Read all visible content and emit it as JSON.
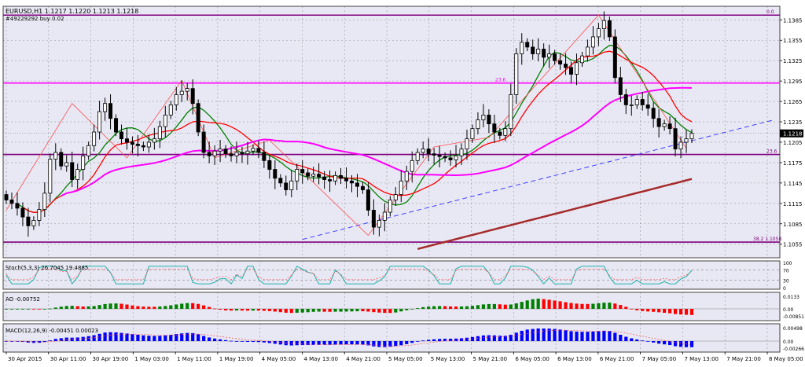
{
  "header": {
    "symbol_line": "EURUSD,H1  1.1217 1.1220 1.1213 1.1218",
    "order_line": "#49229292 buy 0.02"
  },
  "chart_data": {
    "type": "candlestick",
    "symbol": "EURUSD",
    "timeframe": "H1",
    "ohlc_last": {
      "open": 1.1217,
      "high": 1.122,
      "low": 1.1213,
      "close": 1.1218
    },
    "current_price_label": "1.1218",
    "y_ticks": [
      "1.1385",
      "1.1355",
      "1.1325",
      "1.1295",
      "1.1265",
      "1.1235",
      "1.1205",
      "1.1175",
      "1.1145",
      "1.1115",
      "1.1085",
      "1.1055"
    ],
    "x_labels": [
      "30 Apr 2015",
      "30 Apr 11:00",
      "30 Apr 19:00",
      "1 May 03:00",
      "1 May 11:00",
      "1 May 19:00",
      "4 May 05:00",
      "4 May 13:00",
      "4 May 21:00",
      "5 May 05:00",
      "5 May 13:00",
      "5 May 21:00",
      "6 May 05:00",
      "6 May 13:00",
      "6 May 21:00",
      "7 May 05:00",
      "7 May 13:00",
      "7 May 21:00",
      "8 May 05:00"
    ],
    "fib_levels": [
      {
        "label": "0.0",
        "price": 1.1392
      },
      {
        "label": "23.6",
        "price": 1.1292
      },
      {
        "label": "23.6",
        "price": 1.1187
      },
      {
        "label": "38.2 1.1058",
        "price": 1.1058
      }
    ],
    "candles_close": [
      1.112,
      1.1115,
      1.1108,
      1.1095,
      1.1082,
      1.109,
      1.1106,
      1.113,
      1.118,
      1.119,
      1.117,
      1.1175,
      1.115,
      1.1165,
      1.1185,
      1.12,
      1.122,
      1.125,
      1.1262,
      1.124,
      1.122,
      1.121,
      1.1205,
      1.1202,
      1.12,
      1.1198,
      1.1205,
      1.121,
      1.1228,
      1.1245,
      1.126,
      1.1275,
      1.128,
      1.1284,
      1.1262,
      1.122,
      1.119,
      1.1185,
      1.1192,
      1.1195,
      1.1188,
      1.1185,
      1.119,
      1.1188,
      1.1192,
      1.1196,
      1.119,
      1.1178,
      1.1165,
      1.1152,
      1.1145,
      1.1135,
      1.1148,
      1.1165,
      1.116,
      1.1155,
      1.1158,
      1.1154,
      1.115,
      1.1148,
      1.1156,
      1.1152,
      1.1148,
      1.1145,
      1.114,
      1.1135,
      1.1105,
      1.108,
      1.109,
      1.1102,
      1.112,
      1.1128,
      1.1148,
      1.1162,
      1.1178,
      1.119,
      1.1195,
      1.1188,
      1.1186,
      1.1184,
      1.1182,
      1.1179,
      1.1185,
      1.1195,
      1.121,
      1.1225,
      1.1238,
      1.1245,
      1.1232,
      1.122,
      1.1215,
      1.1225,
      1.1275,
      1.1335,
      1.1352,
      1.1345,
      1.1335,
      1.1342,
      1.133,
      1.1335,
      1.1325,
      1.132,
      1.1315,
      1.1305,
      1.1322,
      1.1332,
      1.1345,
      1.136,
      1.1372,
      1.1384,
      1.136,
      1.13,
      1.1275,
      1.126,
      1.126,
      1.1268,
      1.126,
      1.1255,
      1.124,
      1.1228,
      1.1232,
      1.1225,
      1.1195,
      1.1205,
      1.121,
      1.1218
    ],
    "indicators": {
      "stoch": {
        "label": "Stoch(5,3,3) 26.7045 19.4885",
        "ticks": [
          "100",
          "70",
          "30",
          "0"
        ]
      },
      "ao": {
        "label": "AO -0.00752",
        "ticks": [
          "0.0133",
          "0.00",
          "-0.00851"
        ]
      },
      "macd": {
        "label": "MACD(12,26,9) -0.00451 0.00023",
        "ticks": [
          "0.00498",
          "0.00",
          "-0.00266"
        ]
      }
    },
    "colors": {
      "background": "#e8e8f4",
      "grid": "#606060",
      "bull_candle": "#ffffff",
      "bear_candle": "#000000",
      "ma_magenta": "#ff00ff",
      "ma_red": "#ff0000",
      "ma_green": "#008000",
      "ma_brown": "#a52a2a",
      "fib_purple": "#800080",
      "trend_dash": "#4040ff",
      "zigzag": "#ff5050",
      "stoch_main": "#20b2aa",
      "stoch_signal": "#ff5050",
      "ao_up": "#008000",
      "ao_down": "#ff0000",
      "macd_bar": "#0000ff",
      "macd_signal": "#ff5050"
    }
  }
}
